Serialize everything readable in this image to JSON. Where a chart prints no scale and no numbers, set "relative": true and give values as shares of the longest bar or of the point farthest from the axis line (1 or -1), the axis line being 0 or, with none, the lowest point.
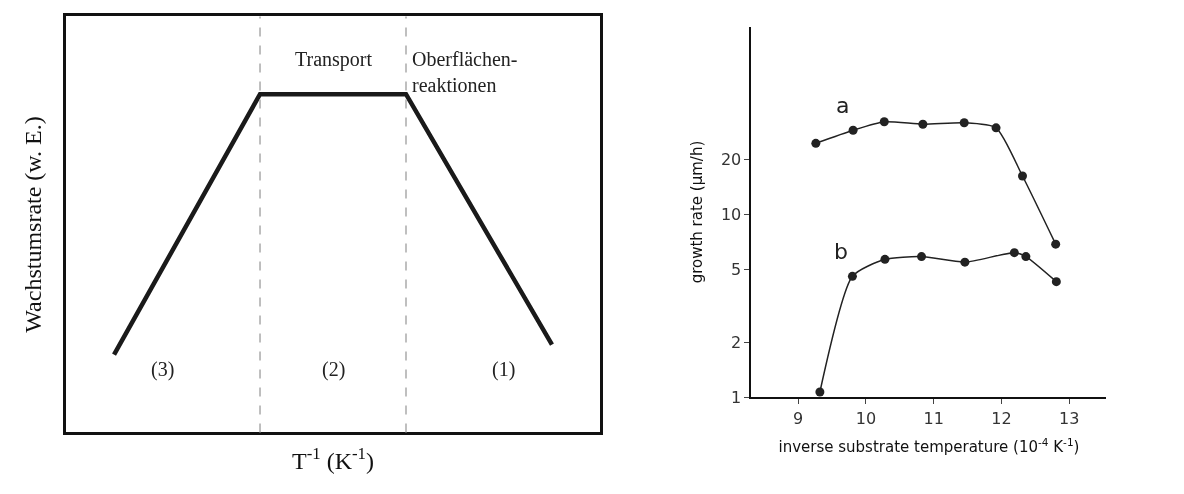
{
  "chart_data": [
    {
      "type": "line",
      "relative": true,
      "xlabel": "T$^{-1}$ (K$^{-1}$)",
      "ylabel": "Wachstumsrate (w. E.)",
      "categories": [
        null,
        null,
        null,
        null
      ],
      "series": [
        {
          "color": "#1a1a1a",
          "values": [
            0.23,
            1,
            1,
            0.26
          ]
        }
      ],
      "annotations": [
        "Transport",
        "Oberflächen-\nreaktionen",
        "(3)",
        "(2)",
        "(1)"
      ],
      "marker": "none",
      "line_style": "solid"
    },
    {
      "type": "line",
      "xlabel": "inverse substrate temperature (10$^{-4}$ K$^{-1}$)",
      "ylabel": "growth rate (µm/h)",
      "log": "y",
      "xlim": [
        8.31,
        13.55
      ],
      "ylim": [
        1,
        107
      ],
      "xticks": [
        9,
        10,
        11,
        12,
        13
      ],
      "yticks": [
        1,
        2,
        5,
        10,
        20
      ],
      "series": [
        {
          "name": "a",
          "color": "#222222",
          "x": [
            9.26,
            9.81,
            10.27,
            10.84,
            11.45,
            11.92,
            12.31,
            12.8
          ],
          "values": [
            24.6,
            29,
            32.3,
            31.3,
            31.9,
            29.9,
            16.3,
            6.9
          ]
        },
        {
          "name": "b",
          "color": "#222222",
          "x": [
            9.32,
            9.8,
            10.28,
            10.82,
            11.46,
            12.19,
            12.36,
            12.81
          ],
          "values": [
            1.07,
            4.6,
            5.7,
            5.9,
            5.5,
            6.2,
            5.9,
            4.3
          ]
        }
      ],
      "marker": "circle",
      "line_style": "solid"
    }
  ]
}
